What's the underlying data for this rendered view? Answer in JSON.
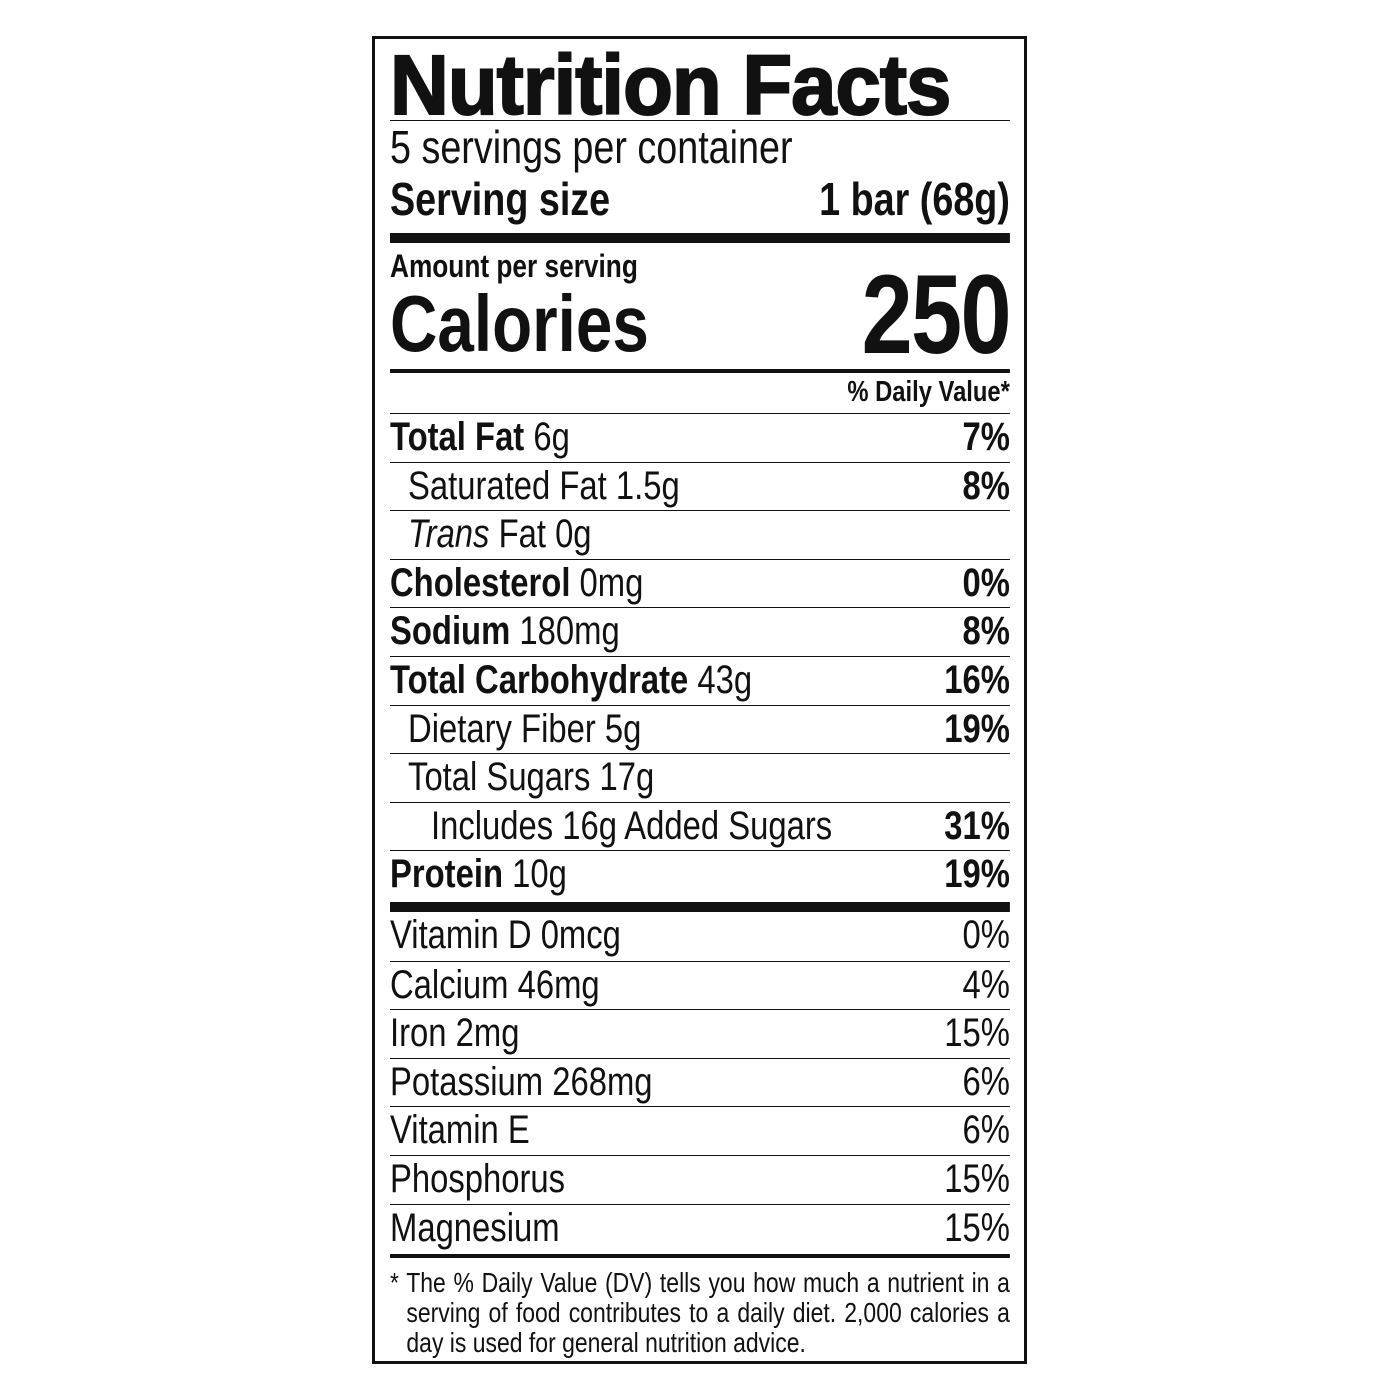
{
  "title": "Nutrition Facts",
  "servings_per_container": "5 servings per container",
  "serving_size": {
    "label": "Serving size",
    "value": "1 bar (68g)"
  },
  "amount_per_serving": "Amount per serving",
  "calories": {
    "label": "Calories",
    "value": "250"
  },
  "daily_value_header": "% Daily Value*",
  "nutrients": [
    {
      "name": "Total Fat",
      "amount": "6g",
      "dv": "7%"
    },
    {
      "name": "Saturated Fat 1.5g",
      "dv": "8%"
    },
    {
      "italic": "Trans",
      "name": " Fat 0g"
    },
    {
      "name": "Cholesterol",
      "amount": "0mg",
      "dv": "0%"
    },
    {
      "name": "Sodium",
      "amount": "180mg",
      "dv": "8%"
    },
    {
      "name": "Total Carbohydrate",
      "amount": "43g",
      "dv": "16%"
    },
    {
      "name": "Dietary Fiber 5g",
      "dv": "19%"
    },
    {
      "name": "Total Sugars 17g"
    },
    {
      "name": "Includes 16g Added Sugars",
      "dv": "31%"
    },
    {
      "name": "Protein",
      "amount": "10g",
      "dv": "19%"
    }
  ],
  "vitamins": [
    {
      "name": "Vitamin D 0mcg",
      "dv": "0%"
    },
    {
      "name": "Calcium 46mg",
      "dv": "4%"
    },
    {
      "name": "Iron 2mg",
      "dv": "15%"
    },
    {
      "name": "Potassium 268mg",
      "dv": "6%"
    },
    {
      "name": "Vitamin E",
      "dv": "6%"
    },
    {
      "name": "Phosphorus",
      "dv": "15%"
    },
    {
      "name": "Magnesium",
      "dv": "15%"
    }
  ],
  "footnote": "* The % Daily Value (DV) tells you how much a nutrient in a serving of food contributes to a daily diet. 2,000 calories a day is used for general nutrition advice."
}
